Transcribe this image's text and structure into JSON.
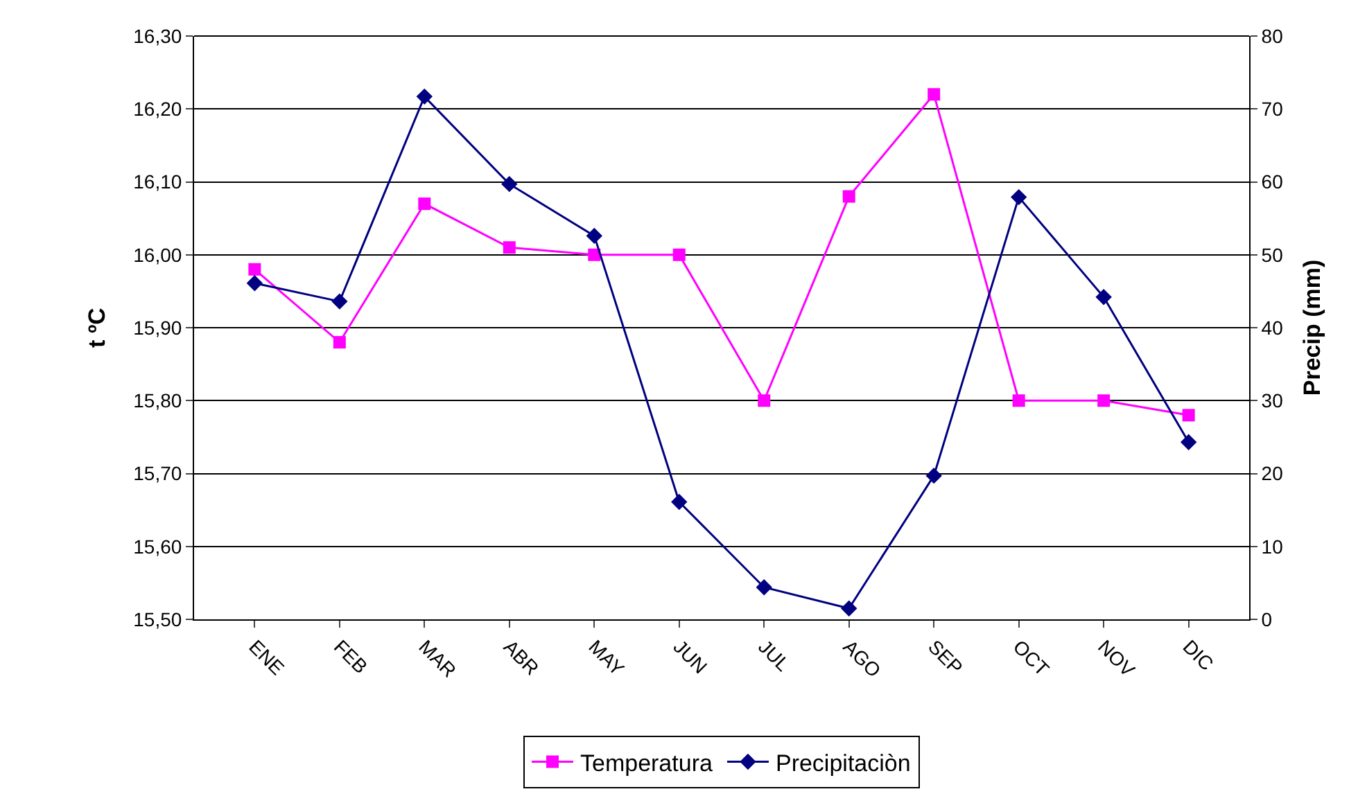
{
  "chart_data": {
    "type": "line",
    "ylabel": "t ºC",
    "y2label": "Precip (mm)",
    "categories": [
      "ENE",
      "FEB",
      "MAR",
      "ABR",
      "MAY",
      "JUN",
      "JUL",
      "AGO",
      "SEP",
      "OCT",
      "NOV",
      "DIC"
    ],
    "series": [
      {
        "name": "Temperatura",
        "color": "#ff00ff",
        "marker": "square",
        "values": [
          15.98,
          15.88,
          16.07,
          16.01,
          16.0,
          16.0,
          15.8,
          16.08,
          16.22,
          15.8,
          15.8,
          15.78
        ]
      },
      {
        "name": "Precipitaciòn",
        "color": "#000080",
        "marker": "diamond",
        "axis": "y2",
        "values": [
          46.1,
          43.6,
          71.7,
          59.7,
          52.6,
          16.1,
          4.4,
          1.5,
          19.7,
          57.9,
          44.2,
          24.3
        ]
      }
    ],
    "ylim": [
      15.5,
      16.3
    ],
    "yticks": [
      {
        "value": 15.5,
        "label": "15,50"
      },
      {
        "value": 15.6,
        "label": "15,60"
      },
      {
        "value": 15.7,
        "label": "15,70"
      },
      {
        "value": 15.8,
        "label": "15,80"
      },
      {
        "value": 15.9,
        "label": "15,90"
      },
      {
        "value": 16.0,
        "label": "16,00"
      },
      {
        "value": 16.1,
        "label": "16,10"
      },
      {
        "value": 16.2,
        "label": "16,20"
      },
      {
        "value": 16.3,
        "label": "16,30"
      }
    ],
    "y2lim": [
      0,
      80
    ],
    "y2ticks": [
      0,
      10,
      20,
      30,
      40,
      50,
      60,
      70,
      80
    ],
    "grid": "y",
    "legend": "bottom",
    "line_style": "solid"
  }
}
